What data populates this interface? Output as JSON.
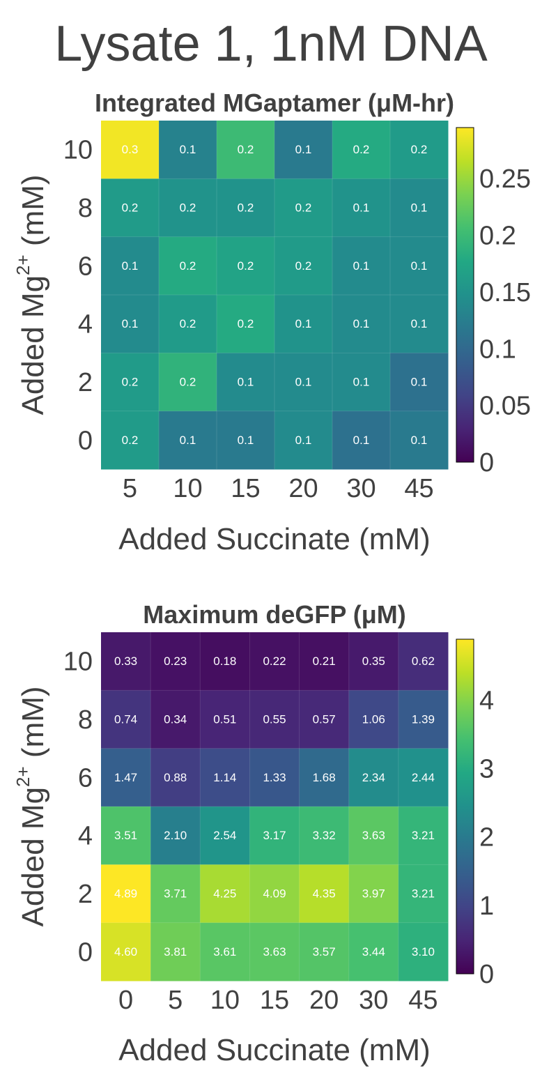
{
  "page": {
    "title": "Lysate 1, 1nM DNA"
  },
  "chart_data": [
    {
      "type": "heatmap",
      "title": "Integrated MGaptamer (μM-hr)",
      "xlabel": "Added Succinate (mM)",
      "ylabel_main": "Added Mg",
      "ylabel_sup": "2+",
      "ylabel_tail": " (mM)",
      "x": [
        "5",
        "10",
        "15",
        "20",
        "30",
        "45"
      ],
      "y": [
        "10",
        "8",
        "6",
        "4",
        "2",
        "0"
      ],
      "values": [
        [
          0.29,
          0.13,
          0.2,
          0.12,
          0.18,
          0.16
        ],
        [
          0.16,
          0.15,
          0.15,
          0.16,
          0.15,
          0.14
        ],
        [
          0.14,
          0.18,
          0.17,
          0.16,
          0.14,
          0.14
        ],
        [
          0.14,
          0.16,
          0.18,
          0.15,
          0.14,
          0.14
        ],
        [
          0.16,
          0.19,
          0.14,
          0.14,
          0.14,
          0.11
        ],
        [
          0.16,
          0.12,
          0.12,
          0.14,
          0.11,
          0.12
        ]
      ],
      "labels": [
        [
          "0.3",
          "0.1",
          "0.2",
          "0.1",
          "0.2",
          "0.2"
        ],
        [
          "0.2",
          "0.2",
          "0.2",
          "0.2",
          "0.1",
          "0.1"
        ],
        [
          "0.1",
          "0.2",
          "0.2",
          "0.2",
          "0.1",
          "0.1"
        ],
        [
          "0.1",
          "0.2",
          "0.2",
          "0.1",
          "0.1",
          "0.1"
        ],
        [
          "0.2",
          "0.2",
          "0.1",
          "0.1",
          "0.1",
          "0.1"
        ],
        [
          "0.2",
          "0.1",
          "0.1",
          "0.1",
          "0.1",
          "0.1"
        ]
      ],
      "colorbar": {
        "min": 0,
        "max": 0.295,
        "ticks": [
          0,
          0.05,
          0.1,
          0.15,
          0.2,
          0.25
        ],
        "tick_labels": [
          "0",
          "0.05",
          "0.1",
          "0.15",
          "0.2",
          "0.25"
        ]
      },
      "colormap": "viridis"
    },
    {
      "type": "heatmap",
      "title": "Maximum deGFP (μM)",
      "xlabel": "Added Succinate (mM)",
      "ylabel_main": "Added Mg",
      "ylabel_sup": "2+",
      "ylabel_tail": " (mM)",
      "x": [
        "0",
        "5",
        "10",
        "15",
        "20",
        "30",
        "45"
      ],
      "y": [
        "10",
        "8",
        "6",
        "4",
        "2",
        "0"
      ],
      "values": [
        [
          0.33,
          0.23,
          0.18,
          0.22,
          0.21,
          0.35,
          0.62
        ],
        [
          0.74,
          0.34,
          0.51,
          0.55,
          0.57,
          1.06,
          1.39
        ],
        [
          1.47,
          0.88,
          1.14,
          1.33,
          1.68,
          2.34,
          2.44
        ],
        [
          3.51,
          2.1,
          2.54,
          3.17,
          3.32,
          3.63,
          3.21
        ],
        [
          4.89,
          3.71,
          4.25,
          4.09,
          4.35,
          3.97,
          3.21
        ],
        [
          4.6,
          3.81,
          3.61,
          3.63,
          3.57,
          3.44,
          3.1
        ]
      ],
      "labels": [
        [
          "0.33",
          "0.23",
          "0.18",
          "0.22",
          "0.21",
          "0.35",
          "0.62"
        ],
        [
          "0.74",
          "0.34",
          "0.51",
          "0.55",
          "0.57",
          "1.06",
          "1.39"
        ],
        [
          "1.47",
          "0.88",
          "1.14",
          "1.33",
          "1.68",
          "2.34",
          "2.44"
        ],
        [
          "3.51",
          "2.10",
          "2.54",
          "3.17",
          "3.32",
          "3.63",
          "3.21"
        ],
        [
          "4.89",
          "3.71",
          "4.25",
          "4.09",
          "4.35",
          "3.97",
          "3.21"
        ],
        [
          "4.60",
          "3.81",
          "3.61",
          "3.63",
          "3.57",
          "3.44",
          "3.10"
        ]
      ],
      "colorbar": {
        "min": 0,
        "max": 4.89,
        "ticks": [
          0,
          1,
          2,
          3,
          4
        ],
        "tick_labels": [
          "0",
          "1",
          "2",
          "3",
          "4"
        ]
      },
      "colormap": "viridis"
    }
  ]
}
